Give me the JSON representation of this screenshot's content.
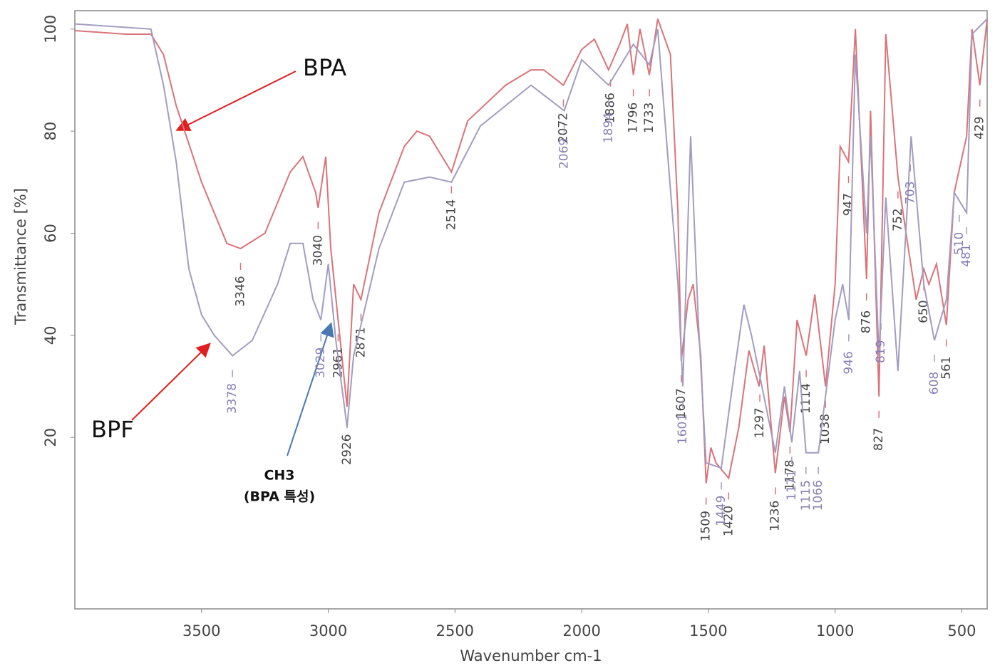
{
  "chart_data": {
    "type": "line",
    "xlabel": "Wavenumber cm-1",
    "ylabel": "Transmittance [%]",
    "xlim": [
      4000,
      400
    ],
    "ylim": [
      -13.6,
      103.6
    ],
    "xticks": [
      3500,
      3000,
      2500,
      2000,
      1500,
      1000,
      500
    ],
    "yticks": [
      20,
      40,
      60,
      80,
      100
    ],
    "grid": false,
    "annotations": [
      "CH3",
      "(BPA 특성)"
    ],
    "series": [
      {
        "name": "BPA",
        "color": "#d9747a",
        "x": [
          4000,
          3800,
          3700,
          3650,
          3600,
          3500,
          3400,
          3346,
          3250,
          3150,
          3100,
          3050,
          3040,
          3010,
          2990,
          2961,
          2926,
          2900,
          2871,
          2800,
          2700,
          2650,
          2600,
          2514,
          2450,
          2300,
          2200,
          2150,
          2072,
          2000,
          1950,
          1894,
          1850,
          1820,
          1796,
          1770,
          1733,
          1700,
          1650,
          1620,
          1607,
          1580,
          1560,
          1530,
          1509,
          1490,
          1470,
          1420,
          1380,
          1340,
          1300,
          1280,
          1236,
          1200,
          1178,
          1150,
          1114,
          1080,
          1038,
          1000,
          980,
          947,
          920,
          900,
          876,
          860,
          827,
          800,
          752,
          720,
          680,
          650,
          630,
          600,
          561,
          530,
          481,
          460,
          429,
          400
        ],
        "values": [
          99.7,
          99,
          99,
          95,
          85,
          70,
          58,
          57,
          60,
          72,
          75,
          68,
          65,
          75,
          57,
          43,
          26,
          50,
          47,
          64,
          77,
          80,
          79,
          72,
          82,
          89,
          92,
          92,
          89,
          96,
          98,
          92,
          97,
          101,
          91,
          100,
          91,
          102,
          95,
          64,
          35,
          47,
          50,
          36,
          11,
          18,
          15,
          12,
          22,
          37,
          30,
          38,
          13,
          28,
          21,
          43,
          36,
          48,
          30,
          50,
          77,
          74,
          100,
          78,
          51,
          84,
          28,
          99,
          71,
          60,
          47,
          53,
          50,
          54,
          42,
          68,
          79,
          100,
          89,
          102
        ],
        "peak_labels": [
          "3346",
          "3040",
          "2961",
          "2926",
          "2871",
          "2514",
          "2072",
          "1886",
          "1796",
          "1733",
          "1607",
          "1509",
          "1420",
          "1297",
          "1236",
          "1178",
          "1114",
          "1038",
          "947",
          "876",
          "827",
          "752",
          "650",
          "561",
          "429"
        ]
      },
      {
        "name": "BPF",
        "color": "#a39cc0",
        "x": [
          4000,
          3700,
          3650,
          3600,
          3550,
          3500,
          3450,
          3378,
          3300,
          3200,
          3150,
          3100,
          3060,
          3029,
          3000,
          2970,
          2926,
          2900,
          2871,
          2800,
          2700,
          2600,
          2514,
          2400,
          2200,
          2069,
          2000,
          1894,
          1796,
          1733,
          1700,
          1620,
          1601,
          1570,
          1540,
          1509,
          1449,
          1400,
          1360,
          1330,
          1297,
          1236,
          1200,
          1171,
          1140,
          1115,
          1066,
          1000,
          970,
          946,
          920,
          876,
          860,
          827,
          800,
          752,
          720,
          700,
          650,
          608,
          561,
          530,
          481,
          460,
          400
        ],
        "values": [
          101,
          100,
          89,
          74,
          53,
          44,
          40,
          36,
          39,
          50,
          58,
          58,
          47,
          43,
          54,
          39,
          22,
          36,
          42,
          57,
          70,
          71,
          70,
          81,
          89,
          84,
          94,
          89,
          97,
          93,
          100,
          50,
          30,
          79,
          43,
          15,
          14,
          32,
          46,
          40,
          32,
          17,
          30,
          19,
          33,
          17,
          17,
          43,
          50,
          43,
          95,
          60,
          79,
          36,
          67,
          33,
          61,
          79,
          50,
          39,
          47,
          68,
          64,
          99,
          102
        ],
        "peak_labels": [
          "3378",
          "3029",
          "2069",
          "1894",
          "1601",
          "1449",
          "1171",
          "1115",
          "1066",
          "946",
          "819",
          "703",
          "608",
          "510",
          "481"
        ]
      }
    ]
  }
}
